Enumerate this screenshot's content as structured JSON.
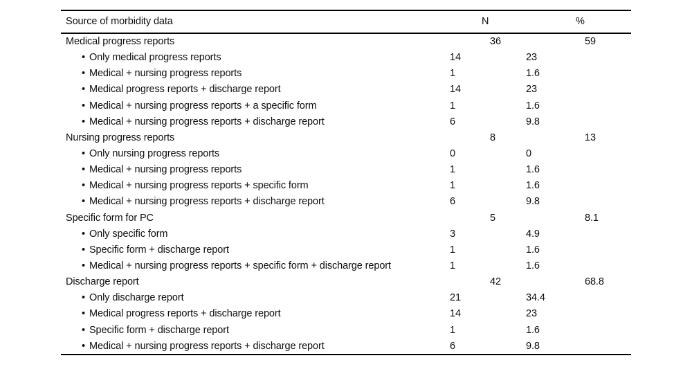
{
  "table": {
    "title_column": "Source of morbidity data",
    "col_n": "N",
    "col_pct": "%",
    "bullet": "•",
    "rows": [
      {
        "label": "Medical progress reports",
        "level": 0,
        "n": "36",
        "pct": "59"
      },
      {
        "label": "Only medical progress reports",
        "level": 1,
        "n": "14",
        "pct": "23"
      },
      {
        "label": "Medical + nursing progress reports",
        "level": 1,
        "n": "1",
        "pct": "1.6"
      },
      {
        "label": "Medical progress reports + discharge report",
        "level": 1,
        "n": "14",
        "pct": "23"
      },
      {
        "label": "Medical + nursing progress reports + a specific form",
        "level": 1,
        "n": "1",
        "pct": "1.6"
      },
      {
        "label": "Medical + nursing progress reports + discharge report",
        "level": 1,
        "n": "6",
        "pct": "9.8"
      },
      {
        "label": "Nursing progress reports",
        "level": 0,
        "n": "8",
        "pct": "13"
      },
      {
        "label": "Only nursing progress reports",
        "level": 1,
        "n": "0",
        "pct": "0"
      },
      {
        "label": "Medical + nursing progress reports",
        "level": 1,
        "n": "1",
        "pct": "1.6"
      },
      {
        "label": "Medical + nursing progress reports + specific form",
        "level": 1,
        "n": "1",
        "pct": "1.6"
      },
      {
        "label": "Medical + nursing progress reports + discharge report",
        "level": 1,
        "n": "6",
        "pct": "9.8"
      },
      {
        "label": "Specific form for PC",
        "level": 0,
        "n": "5",
        "pct": "8.1"
      },
      {
        "label": "Only specific form",
        "level": 1,
        "n": "3",
        "pct": "4.9"
      },
      {
        "label": "Specific form + discharge report",
        "level": 1,
        "n": "1",
        "pct": "1.6"
      },
      {
        "label": "Medical + nursing progress reports + specific form + discharge report",
        "level": 1,
        "n": "1",
        "pct": "1.6"
      },
      {
        "label": "Discharge report",
        "level": 0,
        "n": "42",
        "pct": "68.8"
      },
      {
        "label": "Only discharge report",
        "level": 1,
        "n": "21",
        "pct": "34.4"
      },
      {
        "label": "Medical progress reports + discharge report",
        "level": 1,
        "n": "14",
        "pct": "23"
      },
      {
        "label": "Specific form + discharge report",
        "level": 1,
        "n": "1",
        "pct": "1.6"
      },
      {
        "label": "Medical + nursing progress reports + discharge report",
        "level": 1,
        "n": "6",
        "pct": "9.8"
      }
    ]
  }
}
